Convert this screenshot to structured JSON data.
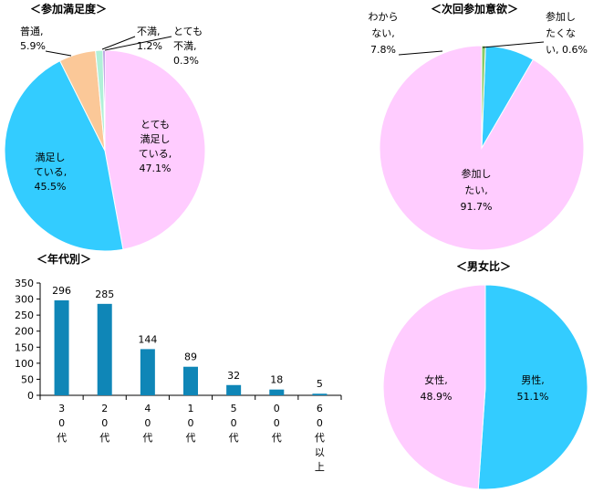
{
  "chart_data": [
    {
      "type": "pie",
      "title": "＜参加満足度＞",
      "slices": [
        {
          "label": "とても満足している",
          "value": 47.1,
          "color": "#ffccff",
          "lines": [
            "とても",
            "満足し",
            "ている,",
            "47.1%"
          ]
        },
        {
          "label": "満足している",
          "value": 45.5,
          "color": "#33ccff",
          "lines": [
            "満足し",
            "ている,",
            "45.5%"
          ]
        },
        {
          "label": "普通",
          "value": 5.9,
          "color": "#fbc898",
          "lines": [
            "普通,",
            "5.9%"
          ]
        },
        {
          "label": "不満",
          "value": 1.2,
          "color": "#b0f0d8",
          "lines": [
            "不満,",
            "1.2%"
          ]
        },
        {
          "label": "とても不満",
          "value": 0.3,
          "color": "#8855cc",
          "lines": [
            "とても",
            "不満,",
            "0.3%"
          ]
        }
      ]
    },
    {
      "type": "pie",
      "title": "＜次回参加意欲＞",
      "slices": [
        {
          "label": "参加したい",
          "value": 91.7,
          "color": "#ffccff",
          "lines": [
            "参加し",
            "たい,",
            "91.7%"
          ]
        },
        {
          "label": "わからない",
          "value": 7.8,
          "color": "#33ccff",
          "lines": [
            "わから",
            "ない,",
            "7.8%"
          ]
        },
        {
          "label": "参加したくない",
          "value": 0.6,
          "color": "#88cc66",
          "lines": [
            "参加し",
            "たくな",
            "い, 0.6%"
          ]
        }
      ]
    },
    {
      "type": "bar",
      "title": "＜年代別＞",
      "categories": [
        "30代",
        "20代",
        "40代",
        "10代",
        "50代",
        "00代",
        "60代以上"
      ],
      "values": [
        296,
        285,
        144,
        89,
        32,
        18,
        5
      ],
      "ylim": [
        0,
        350
      ],
      "yticks": [
        0,
        50,
        100,
        150,
        200,
        250,
        300,
        350
      ],
      "color": "#0f86b7"
    },
    {
      "type": "pie",
      "title": "＜男女比＞",
      "slices": [
        {
          "label": "男性",
          "value": 51.1,
          "color": "#33ccff",
          "lines": [
            "男性,",
            "51.1%"
          ]
        },
        {
          "label": "女性",
          "value": 48.9,
          "color": "#ffccff",
          "lines": [
            "女性,",
            "48.9%"
          ]
        }
      ]
    }
  ]
}
